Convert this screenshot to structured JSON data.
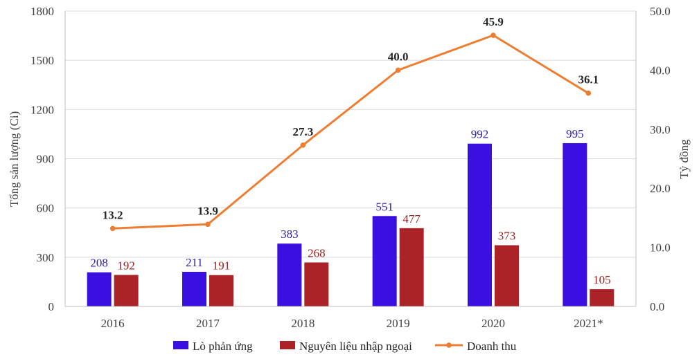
{
  "chart_data": {
    "type": "bar",
    "categories": [
      "2016",
      "2017",
      "2018",
      "2019",
      "2020",
      "2021*"
    ],
    "series": [
      {
        "name": "Lò phản ứng",
        "type": "bar",
        "axis": "left",
        "color": "#3a10e0",
        "values": [
          208,
          211,
          383,
          551,
          992,
          995
        ],
        "labels": [
          "208",
          "211",
          "383",
          "551",
          "992",
          "995"
        ]
      },
      {
        "name": "Nguyên  liệu nhập ngoại",
        "type": "bar",
        "axis": "left",
        "color": "#ab2326",
        "values": [
          192,
          191,
          268,
          477,
          373,
          105
        ],
        "labels": [
          "192",
          "191",
          "268",
          "477",
          "373",
          "105"
        ]
      },
      {
        "name": "Doanh thu",
        "type": "line",
        "axis": "right",
        "color": "#ed7d31",
        "values": [
          13.2,
          13.9,
          27.3,
          40.0,
          45.9,
          36.1
        ],
        "labels": [
          "13.2",
          "13.9",
          "27.3",
          "40.0",
          "45.9",
          "36.1"
        ]
      }
    ],
    "ylabel": "Tổng sản lượng (Ci)",
    "y2label": "Tỷ đồng",
    "ylim": [
      0,
      1800
    ],
    "y2lim": [
      0,
      50
    ],
    "y_ticks": [
      "0",
      "300",
      "600",
      "900",
      "1200",
      "1500",
      "1800"
    ],
    "y2_ticks": [
      "0.0",
      "10.0",
      "20.0",
      "30.0",
      "40.0",
      "50.0"
    ],
    "grid": true,
    "legend": "bottom"
  }
}
